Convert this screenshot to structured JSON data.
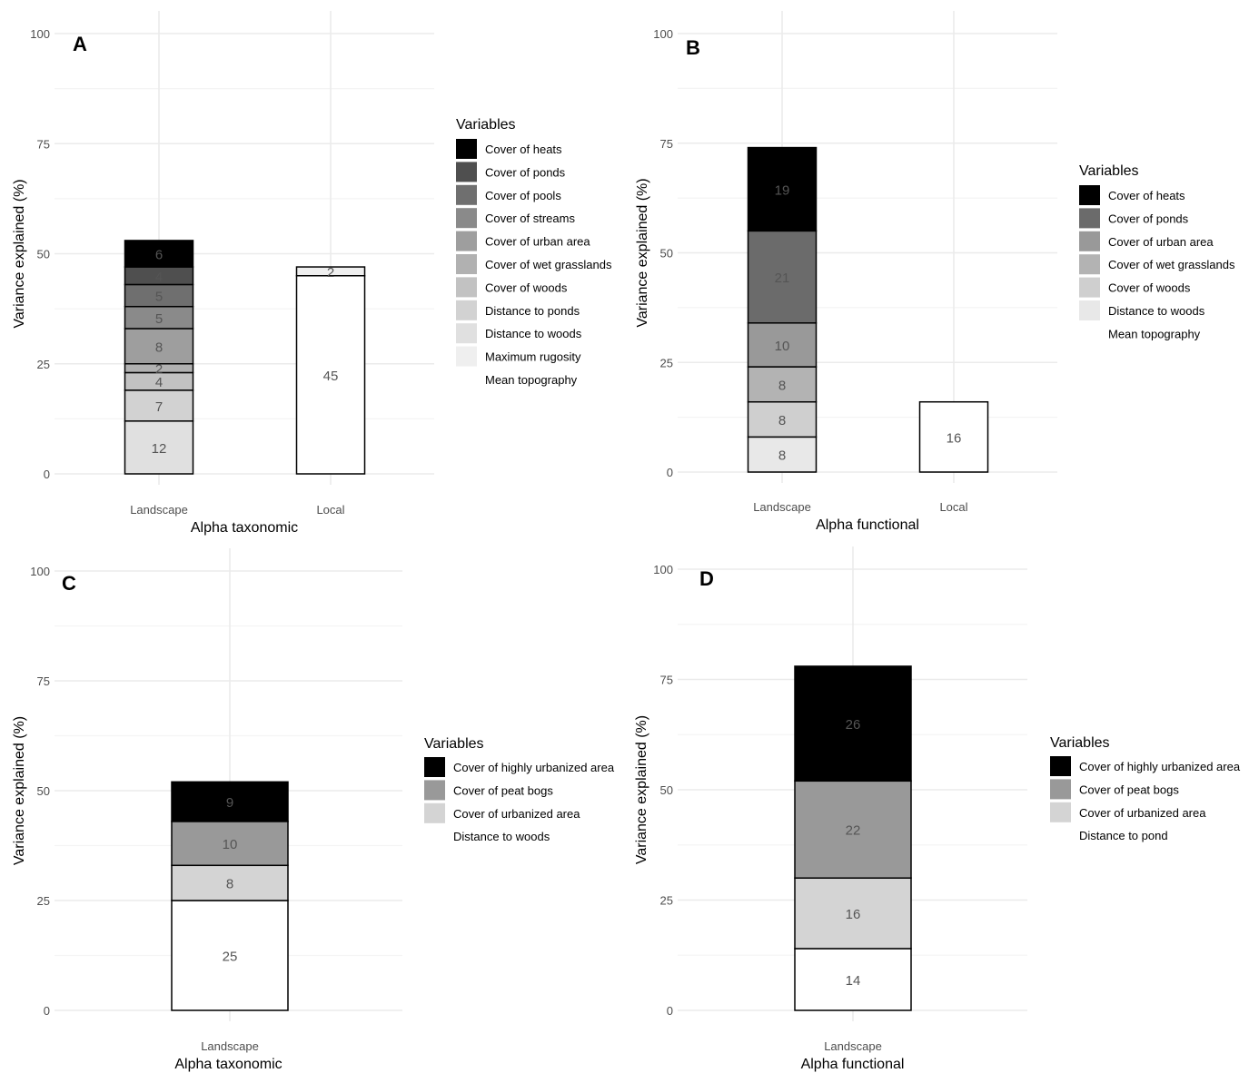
{
  "chart_data": [
    {
      "type": "bar",
      "panel": "A",
      "xlabel": "Alpha taxonomic",
      "ylabel": "Variance explained (%)",
      "ylim": [
        0,
        100
      ],
      "yticks": [
        0,
        25,
        50,
        75,
        100
      ],
      "categories": [
        "Landscape",
        "Local"
      ],
      "legend": {
        "title": "Variables",
        "placement": "right",
        "entries": [
          {
            "name": "Cover of heats",
            "color": "#000000"
          },
          {
            "name": "Cover of ponds",
            "color": "#4f4f4f"
          },
          {
            "name": "Cover of pools",
            "color": "#6f6f6f"
          },
          {
            "name": "Cover of streams",
            "color": "#8a8a8a"
          },
          {
            "name": "Cover of urban area",
            "color": "#9e9e9e"
          },
          {
            "name": "Cover of wet grasslands",
            "color": "#b1b1b1"
          },
          {
            "name": "Cover of woods",
            "color": "#c2c2c2"
          },
          {
            "name": "Distance to ponds",
            "color": "#d2d2d2"
          },
          {
            "name": "Distance to woods",
            "color": "#e0e0e0"
          },
          {
            "name": "Maximum rugosity",
            "color": "#efefef"
          },
          {
            "name": "Mean topography",
            "color": "#ffffff"
          }
        ]
      },
      "series": [
        {
          "name": "Mean topography",
          "values": [
            0,
            45
          ]
        },
        {
          "name": "Maximum rugosity",
          "values": [
            0,
            2
          ]
        },
        {
          "name": "Distance to woods",
          "values": [
            12,
            0
          ]
        },
        {
          "name": "Distance to ponds",
          "values": [
            7,
            0
          ]
        },
        {
          "name": "Cover of woods",
          "values": [
            4,
            0
          ]
        },
        {
          "name": "Cover of wet grasslands",
          "values": [
            2,
            0
          ]
        },
        {
          "name": "Cover of urban area",
          "values": [
            8,
            0
          ]
        },
        {
          "name": "Cover of streams",
          "values": [
            5,
            0
          ]
        },
        {
          "name": "Cover of pools",
          "values": [
            5,
            0
          ]
        },
        {
          "name": "Cover of ponds",
          "values": [
            4,
            0
          ]
        },
        {
          "name": "Cover of heats",
          "values": [
            6,
            0
          ]
        }
      ]
    },
    {
      "type": "bar",
      "panel": "B",
      "xlabel": "Alpha functional",
      "ylabel": "Variance explained (%)",
      "ylim": [
        0,
        100
      ],
      "yticks": [
        0,
        25,
        50,
        75,
        100
      ],
      "categories": [
        "Landscape",
        "Local"
      ],
      "legend": {
        "title": "Variables",
        "placement": "right",
        "entries": [
          {
            "name": "Cover of heats",
            "color": "#000000"
          },
          {
            "name": "Cover of ponds",
            "color": "#6b6b6b"
          },
          {
            "name": "Cover of urban area",
            "color": "#999999"
          },
          {
            "name": "Cover of wet grasslands",
            "color": "#b3b3b3"
          },
          {
            "name": "Cover of woods",
            "color": "#cfcfcf"
          },
          {
            "name": "Distance to woods",
            "color": "#e8e8e8"
          },
          {
            "name": "Mean topography",
            "color": "#ffffff"
          }
        ]
      },
      "series": [
        {
          "name": "Mean topography",
          "values": [
            0,
            16
          ]
        },
        {
          "name": "Distance to woods",
          "values": [
            8,
            0
          ]
        },
        {
          "name": "Cover of woods",
          "values": [
            8,
            0
          ]
        },
        {
          "name": "Cover of wet grasslands",
          "values": [
            8,
            0
          ]
        },
        {
          "name": "Cover of urban area",
          "values": [
            10,
            0
          ]
        },
        {
          "name": "Cover of ponds",
          "values": [
            21,
            0
          ]
        },
        {
          "name": "Cover of heats",
          "values": [
            19,
            0
          ]
        }
      ]
    },
    {
      "type": "bar",
      "panel": "C",
      "xlabel": "Alpha taxonomic",
      "ylabel": "Variance explained (%)",
      "ylim": [
        0,
        100
      ],
      "yticks": [
        0,
        25,
        50,
        75,
        100
      ],
      "categories": [
        "Landscape"
      ],
      "legend": {
        "title": "Variables",
        "placement": "right",
        "entries": [
          {
            "name": "Cover of highly urbanized area",
            "color": "#000000"
          },
          {
            "name": "Cover of peat bogs",
            "color": "#999999"
          },
          {
            "name": "Cover of urbanized area",
            "color": "#d4d4d4"
          },
          {
            "name": "Distance to woods",
            "color": "#ffffff"
          }
        ]
      },
      "series": [
        {
          "name": "Distance to woods",
          "values": [
            25
          ]
        },
        {
          "name": "Cover of urbanized area",
          "values": [
            8
          ]
        },
        {
          "name": "Cover of peat bogs",
          "values": [
            10
          ]
        },
        {
          "name": "Cover of highly urbanized area",
          "values": [
            9
          ]
        }
      ]
    },
    {
      "type": "bar",
      "panel": "D",
      "xlabel": "Alpha functional",
      "ylabel": "Variance explained (%)",
      "ylim": [
        0,
        100
      ],
      "yticks": [
        0,
        25,
        50,
        75,
        100
      ],
      "categories": [
        "Landscape"
      ],
      "legend": {
        "title": "Variables",
        "placement": "right",
        "entries": [
          {
            "name": "Cover of highly urbanized area",
            "color": "#000000"
          },
          {
            "name": "Cover of peat bogs",
            "color": "#999999"
          },
          {
            "name": "Cover of urbanized area",
            "color": "#d4d4d4"
          },
          {
            "name": "Distance to pond",
            "color": "#ffffff"
          }
        ]
      },
      "series": [
        {
          "name": "Distance to pond",
          "values": [
            14
          ]
        },
        {
          "name": "Cover of urbanized area",
          "values": [
            16
          ]
        },
        {
          "name": "Cover of peat bogs",
          "values": [
            22
          ]
        },
        {
          "name": "Cover of highly urbanized area",
          "values": [
            26
          ]
        }
      ]
    }
  ]
}
